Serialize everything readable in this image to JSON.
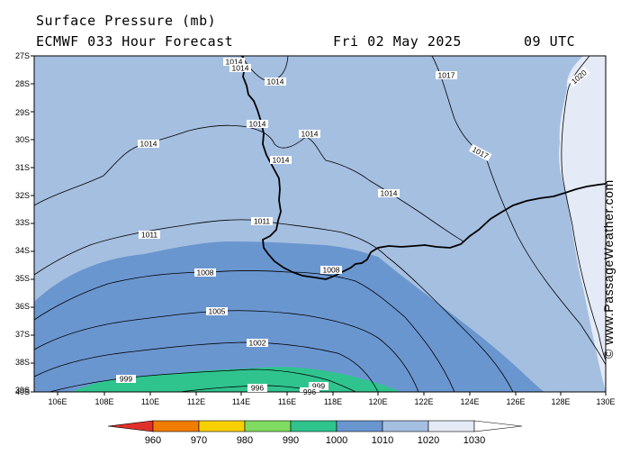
{
  "header": {
    "title": "Surface Pressure (mb)",
    "model": "ECMWF 033 Hour Forecast",
    "date": "Fri 02 May 2025",
    "time": "09 UTC"
  },
  "watermark": "© www.PassageWeather.com",
  "axes": {
    "lat_labels": [
      "27S",
      "28S",
      "29S",
      "30S",
      "31S",
      "32S",
      "33S",
      "34S",
      "35S",
      "36S",
      "37S",
      "38S",
      "39S",
      "40S"
    ],
    "lon_labels": [
      "106E",
      "108E",
      "110E",
      "112E",
      "114E",
      "116E",
      "118E",
      "120E",
      "122E",
      "124E",
      "126E",
      "128E",
      "130E"
    ]
  },
  "fill_colors": {
    "below_960": "#e0302b",
    "960_970": "#f07c00",
    "970_980": "#f8d000",
    "980_990": "#7fdb62",
    "990_1000": "#2fc48e",
    "1000_1010": "#6a96d0",
    "1010_1020": "#a5bfe0",
    "1020_1030": "#e4eaf6",
    "above_1030": "#ffffff"
  },
  "isobar_labels": {
    "l1014a": "1014",
    "l1014b": "1014",
    "l1014c": "1014",
    "l1014d": "1014",
    "l1014e": "1014",
    "l1014f": "1014",
    "l1014g": "1014",
    "l1014h": "1014",
    "l1017a": "1017",
    "l1017b": "1017",
    "l1020": "1020",
    "l1011a": "1011",
    "l1011b": "1011",
    "l1008a": "1008",
    "l1008b": "1008",
    "l1005": "1005",
    "l1002": "1002",
    "l999a": "999",
    "l999b": "999",
    "l996a": "996",
    "l996b": "996"
  },
  "legend": {
    "values": [
      "960",
      "970",
      "980",
      "990",
      "1000",
      "1010",
      "1020",
      "1030"
    ]
  }
}
